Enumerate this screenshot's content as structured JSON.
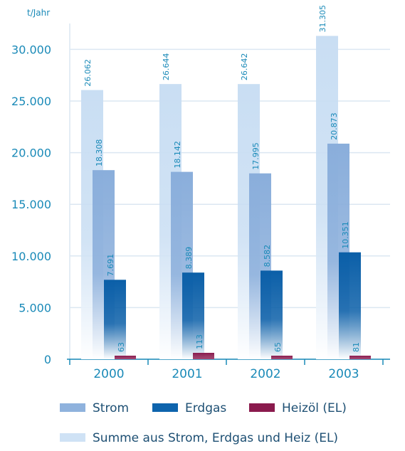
{
  "chart_data": {
    "type": "bar",
    "ylabel": "t/Jahr",
    "categories": [
      "2000",
      "2001",
      "2002",
      "2003"
    ],
    "ylim": [
      0,
      33000
    ],
    "yticks": [
      0,
      5000,
      10000,
      15000,
      20000,
      25000,
      30000
    ],
    "ytick_labels": [
      "0",
      "5.000",
      "10.000",
      "15.000",
      "20.000",
      "25.000",
      "30.000"
    ],
    "grid": true,
    "series": [
      {
        "name": "Summe aus Strom, Erdgas und Heiz (EL)",
        "values": [
          26062,
          26644,
          26642,
          31305
        ],
        "labels": [
          "26.062",
          "26.644",
          "26.642",
          "31.305"
        ],
        "color": "#cfe2f5"
      },
      {
        "name": "Strom",
        "values": [
          18308,
          18142,
          17995,
          20873
        ],
        "labels": [
          "18.308",
          "18.142",
          "17.995",
          "20.873"
        ],
        "color": "#8fb2dd"
      },
      {
        "name": "Erdgas",
        "values": [
          7691,
          8389,
          8582,
          10351
        ],
        "labels": [
          "7.691",
          "8.389",
          "8.582",
          "10.351"
        ],
        "color": "#0e64ad"
      },
      {
        "name": "Heizöl (EL)",
        "values": [
          63,
          113,
          65,
          81
        ],
        "labels": [
          "63",
          "113",
          "65",
          "81"
        ],
        "color": "#8a1a4d"
      }
    ],
    "legend": {
      "position": "bottom",
      "rows": [
        [
          "Strom",
          "Erdgas",
          "Heizöl (EL)"
        ],
        [
          "Summe aus Strom, Erdgas und Heiz (EL)"
        ]
      ]
    }
  }
}
